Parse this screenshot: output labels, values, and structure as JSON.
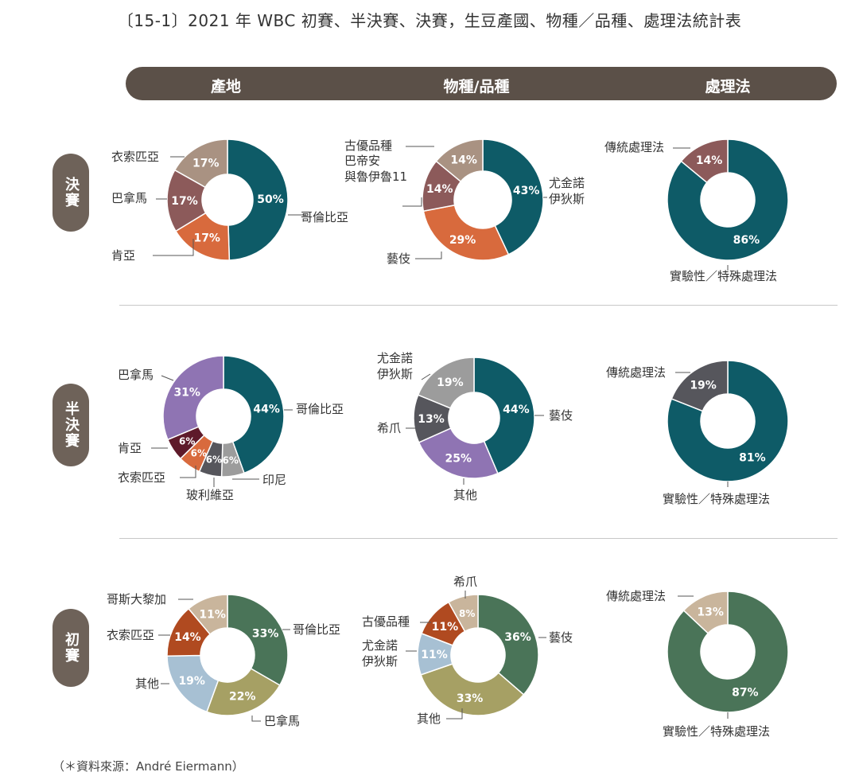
{
  "title": "〔15-1〕2021 年 WBC 初賽、半決賽、決賽，生豆產國、物種／品種、處理法統計表",
  "columns": [
    "產地",
    "物種/品種",
    "處理法"
  ],
  "rows": [
    "決賽",
    "半決賽",
    "初賽"
  ],
  "source": "（＊資料來源：André Eiermann）",
  "colors": {
    "header": "#5b5048",
    "teal": "#0e5b67",
    "orange": "#d86a3d",
    "mauve": "#8c5a5a",
    "taupe": "#a99282",
    "slate": "#56565c",
    "purple": "#8f74b3",
    "plum": "#5e1a2a",
    "brown": "#9a5224",
    "gray": "#9c9c9c",
    "green": "#4a7458",
    "olive": "#a6a064",
    "lightblue": "#a7c0d3",
    "rust": "#b04a20",
    "sand": "#c9b59c"
  },
  "chart_data": [
    {
      "type": "pie",
      "id": "final-origin",
      "title": "",
      "categories": [
        "哥倫比亞",
        "肯亞",
        "巴拿馬",
        "衣索匹亞"
      ],
      "values": [
        50,
        17,
        17,
        17
      ]
    },
    {
      "type": "pie",
      "id": "final-variety",
      "title": "",
      "categories": [
        "尤金諾 伊狄斯",
        "藝伎",
        "巴帝安 與魯伊魯11",
        "古優品種"
      ],
      "values": [
        43,
        29,
        14,
        14
      ]
    },
    {
      "type": "pie",
      "id": "final-process",
      "title": "",
      "categories": [
        "實驗性／特殊處理法",
        "傳統處理法"
      ],
      "values": [
        86,
        14
      ]
    },
    {
      "type": "pie",
      "id": "semi-origin",
      "title": "",
      "categories": [
        "哥倫比亞",
        "印尼",
        "玻利維亞",
        "衣索匹亞",
        "肯亞",
        "巴拿馬"
      ],
      "values": [
        44,
        6,
        6,
        6,
        6,
        31
      ]
    },
    {
      "type": "pie",
      "id": "semi-variety",
      "title": "",
      "categories": [
        "藝伎",
        "其他",
        "希爪",
        "尤金諾 伊狄斯"
      ],
      "values": [
        44,
        25,
        13,
        19
      ]
    },
    {
      "type": "pie",
      "id": "semi-process",
      "title": "",
      "categories": [
        "實驗性／特殊處理法",
        "傳統處理法"
      ],
      "values": [
        81,
        19
      ]
    },
    {
      "type": "pie",
      "id": "prelim-origin",
      "title": "",
      "categories": [
        "哥倫比亞",
        "巴拿馬",
        "其他",
        "衣索匹亞",
        "哥斯大黎加"
      ],
      "values": [
        33,
        22,
        19,
        14,
        11
      ]
    },
    {
      "type": "pie",
      "id": "prelim-variety",
      "title": "",
      "categories": [
        "藝伎",
        "其他",
        "尤金諾 伊狄斯",
        "古優品種",
        "希爪"
      ],
      "values": [
        36,
        33,
        11,
        11,
        8
      ]
    },
    {
      "type": "pie",
      "id": "prelim-process",
      "title": "",
      "categories": [
        "實驗性／特殊處理法",
        "傳統處理法"
      ],
      "values": [
        87,
        13
      ]
    }
  ]
}
